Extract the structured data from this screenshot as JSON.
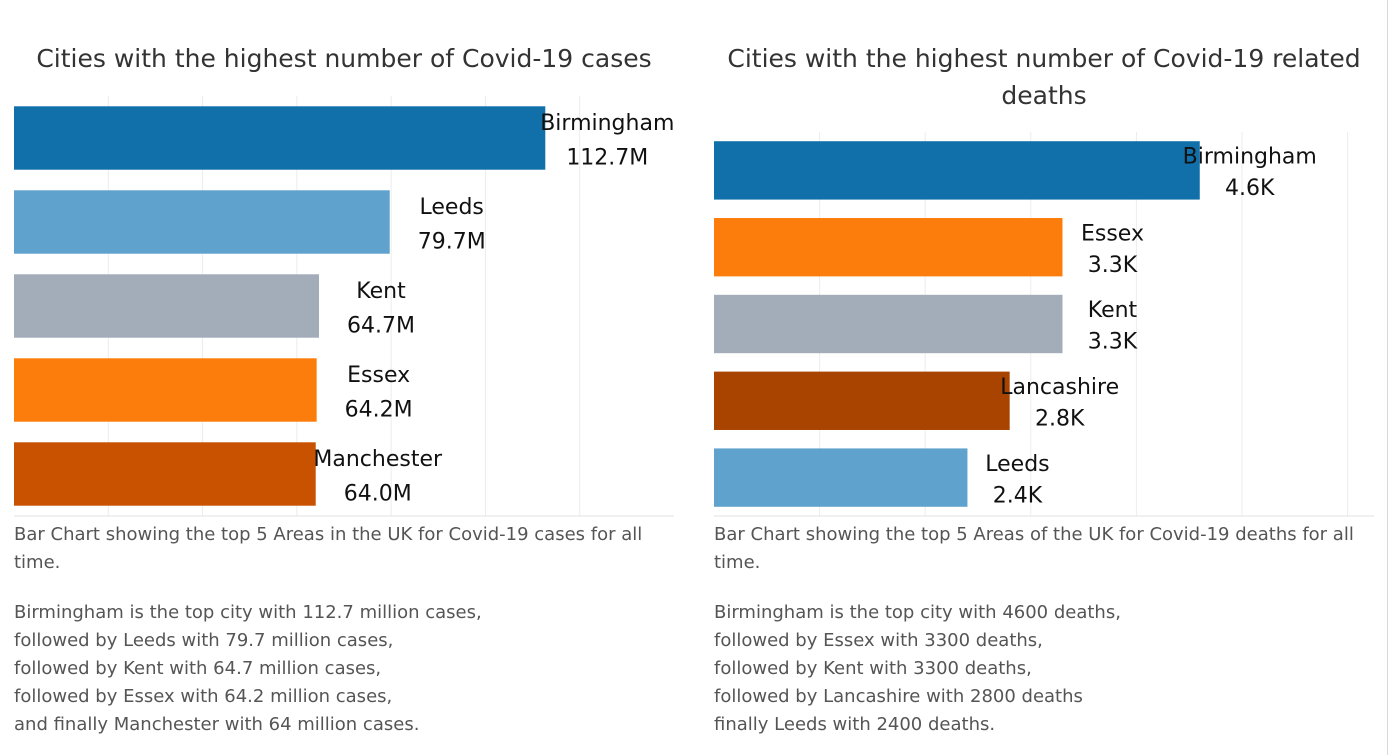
{
  "chart_data": [
    {
      "type": "bar",
      "orientation": "horizontal",
      "title": "Cities with the highest number of Covid-19 cases",
      "categories": [
        "Birmingham",
        "Leeds",
        "Kent",
        "Essex",
        "Manchester"
      ],
      "values": [
        112.7,
        79.7,
        64.7,
        64.2,
        64.0
      ],
      "value_labels": [
        "112.7M",
        "79.7M",
        "64.7M",
        "64.2M",
        "64.0M"
      ],
      "unit": "M",
      "colors": [
        "#1170aa",
        "#5fa2ce",
        "#a3acb9",
        "#fc7d0b",
        "#c85200"
      ],
      "xlim": [
        0,
        140
      ],
      "grid": true,
      "legend": "none",
      "caption": "Bar Chart showing the top 5 Areas in the UK for Covid-19 cases for all time.",
      "description": "Birmingham is the top city with 112.7 million cases,\nfollowed by Leeds with 79.7 million cases,\nfollowed by Kent with 64.7 million cases,\nfollowed by Essex with 64.2 million cases,\nand finally Manchester with 64 million cases."
    },
    {
      "type": "bar",
      "orientation": "horizontal",
      "title": "Cities with the highest number of Covid-19 related deaths",
      "categories": [
        "Birmingham",
        "Essex",
        "Kent",
        "Lancashire",
        "Leeds"
      ],
      "values": [
        4.6,
        3.3,
        3.3,
        2.8,
        2.4
      ],
      "value_labels": [
        "4.6K",
        "3.3K",
        "3.3K",
        "2.8K",
        "2.4K"
      ],
      "unit": "K",
      "colors": [
        "#1170aa",
        "#fc7d0b",
        "#a3acb9",
        "#a94300",
        "#5fa2ce"
      ],
      "xlim": [
        0,
        6.25
      ],
      "grid": true,
      "legend": "none",
      "caption": "Bar Chart showing the top 5 Areas of the UK for Covid-19 deaths for all time.",
      "description": "Birmingham is the top city with 4600 deaths,\nfollowed by Essex with 3300 deaths,\nfollowed by Kent with 3300 deaths,\nfollowed by Lancashire with 2800 deaths\nfinally Leeds with 2400 deaths."
    }
  ]
}
